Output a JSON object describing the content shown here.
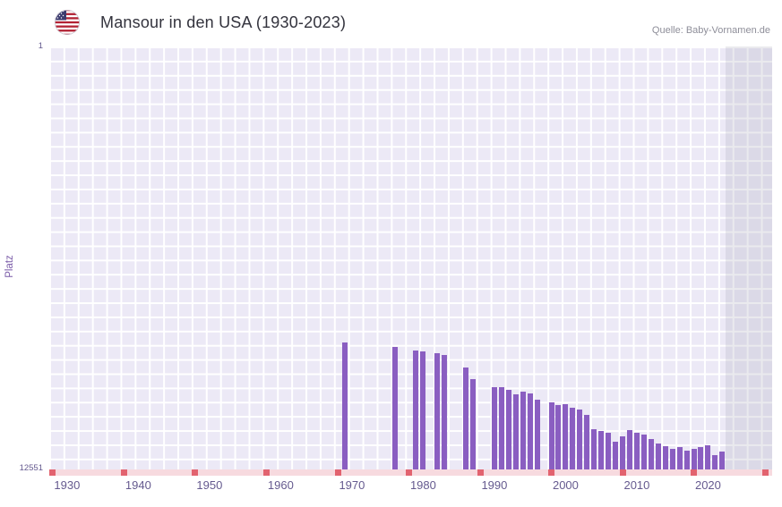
{
  "header": {
    "title": "Mansour in den USA (1930-2023)",
    "source": "Quelle: Baby-Vornamen.de"
  },
  "chart_data": {
    "type": "bar",
    "title": "Mansour in den USA (1930-2023)",
    "xlabel": "",
    "ylabel": "Platz",
    "legend": "none",
    "grid": "on",
    "y_axis": {
      "top_label": "1",
      "bottom_label": "12551",
      "min": 1,
      "max": 12551,
      "inverted": true
    },
    "x_axis": {
      "domain_start": 1927.5,
      "domain_end": 2029,
      "ticks": [
        1930,
        1940,
        1950,
        1960,
        1970,
        1980,
        1990,
        2000,
        2010,
        2020
      ]
    },
    "bar_color": "#8a5ec1",
    "plot_bg_color": "#ece9f6",
    "no_data_strip_color": "#f7dadf",
    "no_data_marker_color": "#e2636f",
    "future_band": {
      "start": 2022.5,
      "color": "rgba(160,160,178,0.22)"
    },
    "no_data_markers": [
      1928,
      1938,
      1948,
      1958,
      1968,
      1978,
      1988,
      1998,
      2008,
      2018,
      2028
    ],
    "points": [
      {
        "year": 1969,
        "rank": 8790
      },
      {
        "year": 1976,
        "rank": 8920
      },
      {
        "year": 1979,
        "rank": 9030
      },
      {
        "year": 1980,
        "rank": 9040
      },
      {
        "year": 1982,
        "rank": 9110
      },
      {
        "year": 1983,
        "rank": 9160
      },
      {
        "year": 1986,
        "rank": 9530
      },
      {
        "year": 1987,
        "rank": 9880
      },
      {
        "year": 1990,
        "rank": 10110
      },
      {
        "year": 1991,
        "rank": 10120
      },
      {
        "year": 1992,
        "rank": 10200
      },
      {
        "year": 1993,
        "rank": 10330
      },
      {
        "year": 1994,
        "rank": 10250
      },
      {
        "year": 1995,
        "rank": 10300
      },
      {
        "year": 1996,
        "rank": 10480
      },
      {
        "year": 1998,
        "rank": 10560
      },
      {
        "year": 1999,
        "rank": 10640
      },
      {
        "year": 2000,
        "rank": 10610
      },
      {
        "year": 2001,
        "rank": 10720
      },
      {
        "year": 2002,
        "rank": 10780
      },
      {
        "year": 2003,
        "rank": 10930
      },
      {
        "year": 2004,
        "rank": 11360
      },
      {
        "year": 2005,
        "rank": 11410
      },
      {
        "year": 2006,
        "rank": 11460
      },
      {
        "year": 2007,
        "rank": 11730
      },
      {
        "year": 2008,
        "rank": 11570
      },
      {
        "year": 2009,
        "rank": 11390
      },
      {
        "year": 2010,
        "rank": 11460
      },
      {
        "year": 2011,
        "rank": 11520
      },
      {
        "year": 2012,
        "rank": 11650
      },
      {
        "year": 2013,
        "rank": 11780
      },
      {
        "year": 2014,
        "rank": 11860
      },
      {
        "year": 2015,
        "rank": 11940
      },
      {
        "year": 2016,
        "rank": 11890
      },
      {
        "year": 2017,
        "rank": 11990
      },
      {
        "year": 2018,
        "rank": 11940
      },
      {
        "year": 2019,
        "rank": 11890
      },
      {
        "year": 2020,
        "rank": 11840
      },
      {
        "year": 2021,
        "rank": 12130
      },
      {
        "year": 2022,
        "rank": 12030
      }
    ]
  }
}
